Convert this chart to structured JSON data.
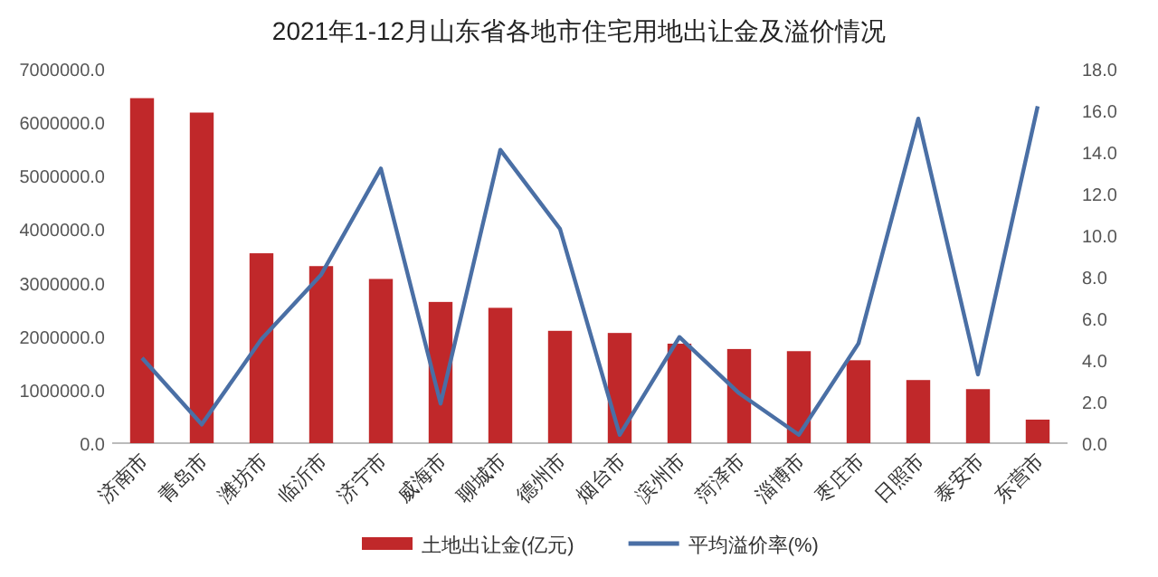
{
  "chart_data": {
    "type": "bar",
    "title": "2021年1-12月山东省各地市住宅用地出让金及溢价情况",
    "categories": [
      "济南市",
      "青岛市",
      "潍坊市",
      "临沂市",
      "济宁市",
      "威海市",
      "聊城市",
      "德州市",
      "烟台市",
      "滨州市",
      "菏泽市",
      "淄博市",
      "枣庄市",
      "日照市",
      "泰安市",
      "东营市"
    ],
    "series": [
      {
        "name": "土地出让金(亿元)",
        "color": "#c0282a",
        "values": [
          6450000,
          6180000,
          3550000,
          3310000,
          3070000,
          2640000,
          2530000,
          2100000,
          2060000,
          1860000,
          1760000,
          1720000,
          1550000,
          1180000,
          1010000,
          440000
        ]
      },
      {
        "name": "平均溢价率(%)",
        "type": "line",
        "axis": "y2",
        "color": "#4a6fa5",
        "values": [
          4.1,
          0.9,
          5.0,
          8.1,
          13.2,
          1.9,
          14.1,
          10.3,
          0.4,
          5.1,
          2.4,
          0.4,
          4.8,
          15.6,
          3.3,
          16.2
        ]
      }
    ],
    "ylim": [
      0,
      7000000
    ],
    "yticks": [
      {
        "value": 0,
        "label": "0.0"
      },
      {
        "value": 1000000,
        "label": "1000000.0"
      },
      {
        "value": 2000000,
        "label": "2000000.0"
      },
      {
        "value": 3000000,
        "label": "3000000.0"
      },
      {
        "value": 4000000,
        "label": "4000000.0"
      },
      {
        "value": 5000000,
        "label": "5000000.0"
      },
      {
        "value": 6000000,
        "label": "6000000.0"
      },
      {
        "value": 7000000,
        "label": "7000000.0"
      }
    ],
    "y2lim": [
      0,
      18
    ],
    "y2ticks": [
      {
        "value": 0,
        "label": "0.0"
      },
      {
        "value": 2,
        "label": "2.0"
      },
      {
        "value": 4,
        "label": "4.0"
      },
      {
        "value": 6,
        "label": "6.0"
      },
      {
        "value": 8,
        "label": "8.0"
      },
      {
        "value": 10,
        "label": "10.0"
      },
      {
        "value": 12,
        "label": "12.0"
      },
      {
        "value": 14,
        "label": "14.0"
      },
      {
        "value": 16,
        "label": "16.0"
      },
      {
        "value": 18,
        "label": "18.0"
      }
    ],
    "legend": "bottom"
  }
}
